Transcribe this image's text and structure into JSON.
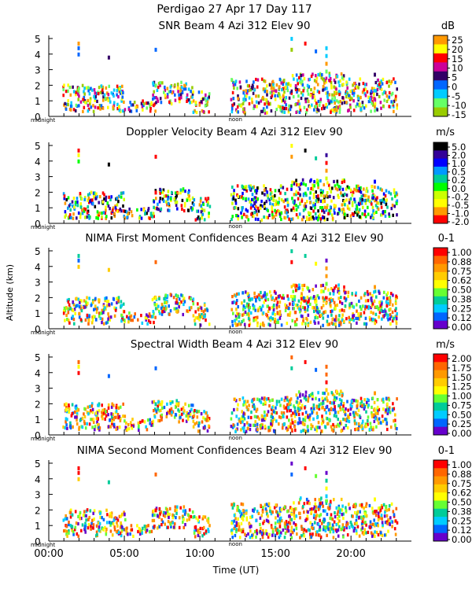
{
  "header": {
    "title": "Perdigao  27 Apr 17 Day 117",
    "y_axis_label": "Altitude (km)",
    "x_axis_label": "Time (UT)",
    "x_ticks": [
      "00:00",
      "05:00",
      "10:00",
      "15:00",
      "20:00"
    ],
    "midnight_label": "midnight",
    "noon_label": "noon"
  },
  "chart_data": [
    {
      "type": "heatmap",
      "title": "SNR Beam 4 Azi 312 Elev 90",
      "unit": "dB",
      "xlabel": "Time (UT)",
      "ylabel": "Altitude (km)",
      "xlim": [
        0,
        24
      ],
      "ylim": [
        0,
        5.2
      ],
      "yticks": [
        0,
        1,
        2,
        3,
        4,
        5
      ],
      "colorbar_labels": [
        "25",
        "20",
        "15",
        "10",
        "5",
        "0",
        "-5",
        "-10",
        "-15"
      ],
      "colors": [
        "#ff9900",
        "#ffff00",
        "#ff0000",
        "#cc0099",
        "#330066",
        "#0066ff",
        "#00ccff",
        "#66ff66",
        "#99cc00"
      ]
    },
    {
      "type": "heatmap",
      "title": "Doppler Velocity Beam 4 Azi 312 Elev 90",
      "unit": "m/s",
      "xlabel": "Time (UT)",
      "ylabel": "Altitude (km)",
      "xlim": [
        0,
        24
      ],
      "ylim": [
        0,
        5.2
      ],
      "yticks": [
        0,
        1,
        2,
        3,
        4,
        5
      ],
      "colorbar_labels": [
        "5.0",
        "2.0",
        "1.0",
        "0.5",
        "0.2",
        "0.0",
        "-0.2",
        "-0.5",
        "-1.0",
        "-2.0"
      ],
      "colors": [
        "#000000",
        "#330099",
        "#0000ff",
        "#0099ff",
        "#00cc99",
        "#00ff00",
        "#ccff00",
        "#ffff00",
        "#ff9900",
        "#ff0000"
      ]
    },
    {
      "type": "heatmap",
      "title": "NIMA First Moment Confidences Beam 4 Azi 312 Elev 90",
      "unit": "0-1",
      "xlabel": "Time (UT)",
      "ylabel": "Altitude (km)",
      "xlim": [
        0,
        24
      ],
      "ylim": [
        0,
        5.2
      ],
      "yticks": [
        0,
        1,
        2,
        3,
        4,
        5
      ],
      "colorbar_labels": [
        "1.00",
        "0.88",
        "0.75",
        "0.62",
        "0.50",
        "0.38",
        "0.25",
        "0.12",
        "0.00"
      ],
      "colors": [
        "#ff0000",
        "#ff6600",
        "#ff9900",
        "#ffcc00",
        "#ffff00",
        "#66ff33",
        "#00cc99",
        "#00ccff",
        "#0066ff",
        "#6600cc"
      ]
    },
    {
      "type": "heatmap",
      "title": "Spectral Width Beam 4 Azi 312 Elev 90",
      "unit": "m/s",
      "xlabel": "Time (UT)",
      "ylabel": "Altitude (km)",
      "xlim": [
        0,
        24
      ],
      "ylim": [
        0,
        5.2
      ],
      "yticks": [
        0,
        1,
        2,
        3,
        4,
        5
      ],
      "colorbar_labels": [
        "2.00",
        "1.75",
        "1.50",
        "1.25",
        "1.00",
        "0.75",
        "0.50",
        "0.25",
        "0.00"
      ],
      "colors": [
        "#ff0000",
        "#ff6600",
        "#ff9900",
        "#ffcc00",
        "#ffff00",
        "#66ff33",
        "#00cc99",
        "#00ccff",
        "#0066ff",
        "#6600cc"
      ]
    },
    {
      "type": "heatmap",
      "title": "NIMA Second Moment Confidences Beam 4 Azi 312 Elev 90",
      "unit": "0-1",
      "xlabel": "Time (UT)",
      "ylabel": "Altitude (km)",
      "xlim": [
        0,
        24
      ],
      "ylim": [
        0,
        5.2
      ],
      "yticks": [
        0,
        1,
        2,
        3,
        4,
        5
      ],
      "colorbar_labels": [
        "1.00",
        "0.88",
        "0.75",
        "0.62",
        "0.50",
        "0.38",
        "0.25",
        "0.12",
        "0.00"
      ],
      "colors": [
        "#ff0000",
        "#ff6600",
        "#ff9900",
        "#ffcc00",
        "#ffff00",
        "#66ff33",
        "#00cc99",
        "#00ccff",
        "#0066ff",
        "#6600cc"
      ]
    }
  ]
}
